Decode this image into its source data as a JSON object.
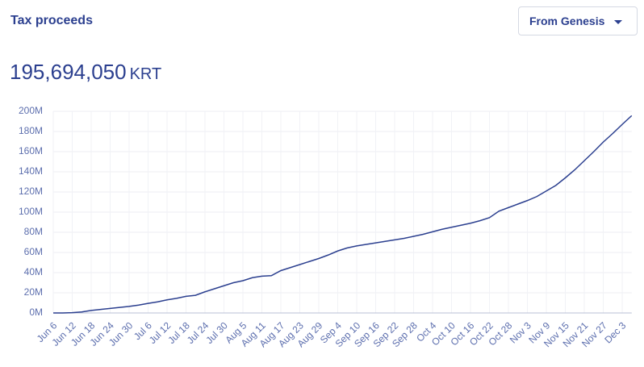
{
  "header": {
    "title": "Tax proceeds",
    "dropdown": "From Genesis",
    "total": "195,694,050",
    "unit": "KRT"
  },
  "chart_data": {
    "type": "line",
    "color": "#2b3f8f",
    "grid": true,
    "categories": [
      "Jun 6",
      null,
      "Jun 12",
      null,
      "Jun 18",
      null,
      "Jun 24",
      null,
      "Jun 30",
      null,
      "Jul 6",
      null,
      "Jul 12",
      null,
      "Jul 18",
      null,
      "Jul 24",
      null,
      "Jul 30",
      null,
      "Aug 5",
      null,
      "Aug 11",
      null,
      "Aug 17",
      null,
      "Aug 23",
      null,
      "Aug 29",
      null,
      "Sep 4",
      null,
      "Sep 10",
      null,
      "Sep 16",
      null,
      "Sep 22",
      null,
      "Sep 28",
      null,
      "Oct 4",
      null,
      "Oct 10",
      null,
      "Oct 16",
      null,
      "Oct 22",
      null,
      "Oct 28",
      null,
      "Nov 3",
      null,
      "Nov 9",
      null,
      "Nov 15",
      null,
      "Nov 21",
      null,
      "Nov 27",
      null,
      "Dec 3",
      null
    ],
    "values": [
      0,
      0,
      300000,
      1000000,
      2500000,
      3500000,
      4500000,
      5500000,
      6500000,
      7800000,
      9500000,
      11000000,
      13000000,
      14500000,
      16500000,
      17500000,
      21000000,
      24000000,
      27000000,
      30000000,
      32000000,
      35000000,
      36500000,
      37000000,
      42000000,
      45000000,
      48000000,
      51000000,
      54000000,
      57500000,
      61500000,
      64500000,
      66500000,
      68000000,
      69500000,
      71000000,
      72500000,
      74000000,
      76000000,
      78000000,
      80500000,
      83000000,
      85000000,
      87000000,
      89000000,
      91500000,
      94500000,
      101000000,
      104500000,
      108000000,
      111500000,
      115500000,
      121000000,
      126500000,
      134000000,
      142000000,
      151000000,
      160000000,
      169500000,
      178000000,
      187000000,
      195694050
    ],
    "ylim": [
      0,
      200000000
    ],
    "yticks": [
      {
        "value": 0,
        "label": "0M"
      },
      {
        "value": 20000000,
        "label": "20M"
      },
      {
        "value": 40000000,
        "label": "40M"
      },
      {
        "value": 60000000,
        "label": "60M"
      },
      {
        "value": 80000000,
        "label": "80M"
      },
      {
        "value": 100000000,
        "label": "100M"
      },
      {
        "value": 120000000,
        "label": "120M"
      },
      {
        "value": 140000000,
        "label": "140M"
      },
      {
        "value": 160000000,
        "label": "160M"
      },
      {
        "value": 180000000,
        "label": "180M"
      },
      {
        "value": 200000000,
        "label": "200M"
      }
    ]
  }
}
